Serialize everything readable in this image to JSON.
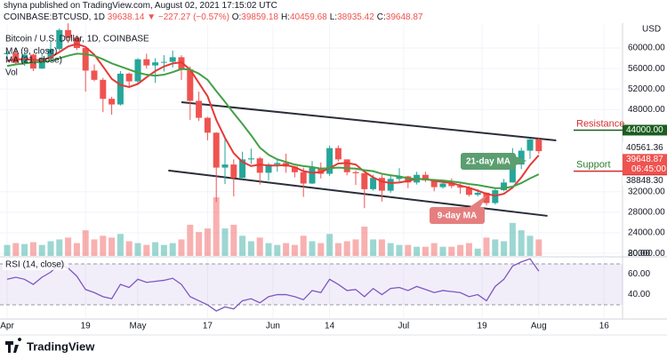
{
  "header": {
    "byline": "shyna published on TradingView.com, August 02, 2021 17:15:02 UTC",
    "symbol": "COINBASE:BTCUSD, 1D",
    "last": 39638.14,
    "change": "▼ −227.27 (−0.57%)",
    "ohlc": [
      {
        "label": "O:",
        "value": 39859.18
      },
      {
        "label": "H:",
        "value": 40459.68
      },
      {
        "label": "L:",
        "value": 38935.42
      },
      {
        "label": "C:",
        "value": 39648.87
      }
    ]
  },
  "footer": {
    "brand": "TradingView"
  },
  "chart_data": {
    "type": "candlestick",
    "title": "Bitcoin / U.S. Dollar, 1D, COINBASE",
    "y_unit": "USD",
    "up_color": "#26a69a",
    "down_color": "#ef5350",
    "grid": true,
    "x": [
      "Apr 1",
      "Apr 3",
      "Apr 5",
      "Apr 7",
      "Apr 9",
      "Apr 11",
      "Apr 13",
      "Apr 15",
      "Apr 17",
      "Apr 19",
      "Apr 21",
      "Apr 23",
      "Apr 25",
      "Apr 27",
      "Apr 29",
      "May 1",
      "May 3",
      "May 5",
      "May 7",
      "May 9",
      "May 11",
      "May 13",
      "May 15",
      "May 17",
      "May 19",
      "May 21",
      "May 23",
      "May 25",
      "May 27",
      "May 29",
      "May 31",
      "Jun 2",
      "Jun 4",
      "Jun 6",
      "Jun 8",
      "Jun 10",
      "Jun 12",
      "Jun 14",
      "Jun 16",
      "Jun 18",
      "Jun 20",
      "Jun 22",
      "Jun 24",
      "Jun 26",
      "Jun 28",
      "Jun 30",
      "Jul 2",
      "Jul 4",
      "Jul 6",
      "Jul 8",
      "Jul 10",
      "Jul 12",
      "Jul 14",
      "Jul 16",
      "Jul 18",
      "Jul 20",
      "Jul 22",
      "Jul 24",
      "Jul 26",
      "Jul 28",
      "Jul 30",
      "Aug 1"
    ],
    "open": [
      58800,
      59000,
      57100,
      58700,
      56000,
      58100,
      59800,
      63500,
      62000,
      60000,
      55600,
      53800,
      50100,
      49000,
      55000,
      53500,
      57800,
      56600,
      57200,
      57300,
      58200,
      55800,
      49700,
      46400,
      43500,
      36700,
      37300,
      34700,
      38300,
      38500,
      35700,
      37300,
      37600,
      36900,
      35800,
      33600,
      36700,
      35500,
      40500,
      38300,
      35800,
      35600,
      32500,
      34700,
      32200,
      34500,
      35000,
      33800,
      35300,
      34200,
      32900,
      33600,
      33100,
      32800,
      31400,
      31800,
      29800,
      32300,
      33800,
      37300,
      40000,
      42200
    ],
    "high": [
      59400,
      60000,
      59200,
      58900,
      59000,
      61300,
      63800,
      64800,
      62500,
      60100,
      56800,
      54200,
      50500,
      55500,
      55200,
      58000,
      58900,
      58000,
      58600,
      59500,
      58600,
      56400,
      51500,
      46600,
      43600,
      42400,
      38300,
      39800,
      40400,
      38800,
      37600,
      38200,
      39400,
      37000,
      36700,
      38000,
      37700,
      41000,
      41000,
      38300,
      36200,
      35600,
      35300,
      35300,
      35200,
      36600,
      35100,
      35900,
      35900,
      34500,
      34300,
      34600,
      33900,
      33100,
      32500,
      31900,
      32800,
      34500,
      40500,
      40600,
      42300,
      42600
    ],
    "low": [
      57900,
      56900,
      56500,
      55500,
      55900,
      57900,
      59500,
      61000,
      59600,
      51500,
      53500,
      47500,
      47000,
      48800,
      52300,
      53000,
      56000,
      53200,
      55400,
      56200,
      53800,
      46000,
      45800,
      42000,
      30000,
      33500,
      31100,
      34400,
      37400,
      33400,
      34200,
      35900,
      35700,
      34800,
      31000,
      33500,
      34600,
      35100,
      37900,
      35200,
      33300,
      28800,
      32200,
      30100,
      31800,
      34000,
      32700,
      33400,
      33900,
      32100,
      32600,
      32700,
      31600,
      31100,
      31100,
      29300,
      29500,
      32100,
      33800,
      36400,
      38400,
      39400
    ],
    "close": [
      59000,
      57100,
      58700,
      56000,
      58100,
      59800,
      63500,
      62000,
      60000,
      55600,
      53800,
      50100,
      49000,
      55000,
      53500,
      57800,
      56600,
      57200,
      57300,
      58200,
      55800,
      49700,
      46400,
      43500,
      36700,
      37300,
      34700,
      38300,
      38500,
      35700,
      37300,
      37600,
      36900,
      35800,
      33600,
      36700,
      35500,
      40500,
      38300,
      35800,
      35600,
      32500,
      34700,
      32200,
      34500,
      35000,
      33800,
      35300,
      34200,
      32900,
      33600,
      33100,
      32800,
      31400,
      31800,
      29800,
      32300,
      33800,
      37300,
      40000,
      42200,
      39900
    ],
    "series": [
      {
        "name": "MA (9, close)",
        "color": "#e53935",
        "values": [
          57500,
          57800,
          57800,
          57700,
          57600,
          58200,
          59200,
          60300,
          60800,
          60200,
          58700,
          56400,
          54000,
          52800,
          52400,
          53000,
          54300,
          55500,
          56400,
          57000,
          57200,
          55800,
          53200,
          50600,
          46000,
          42500,
          39500,
          37800,
          37000,
          37300,
          37100,
          37100,
          37200,
          36800,
          36000,
          35700,
          35800,
          36600,
          37500,
          37600,
          37300,
          35900,
          34800,
          34000,
          33700,
          33800,
          34100,
          34500,
          34500,
          34100,
          33900,
          33700,
          33200,
          32800,
          32200,
          31600,
          31200,
          31600,
          32800,
          34800,
          37200,
          39100
        ]
      },
      {
        "name": "MA (21, close)",
        "color": "#43a047",
        "values": [
          56500,
          56800,
          57000,
          57200,
          57300,
          57500,
          58000,
          58500,
          58900,
          58800,
          58500,
          57800,
          57000,
          56400,
          55800,
          55200,
          54800,
          54600,
          54800,
          55300,
          55900,
          55800,
          55000,
          53800,
          51600,
          49500,
          47300,
          45200,
          43000,
          40600,
          39200,
          38300,
          37800,
          37300,
          37000,
          36800,
          36500,
          36600,
          36700,
          36600,
          36500,
          36200,
          36000,
          35500,
          35200,
          35000,
          34600,
          34500,
          34400,
          34300,
          34200,
          34000,
          33800,
          33500,
          33300,
          33000,
          32700,
          32700,
          33000,
          33700,
          34600,
          35400
        ]
      }
    ],
    "volume": {
      "name": "Vol",
      "values": [
        12000,
        14000,
        13000,
        15000,
        12000,
        16000,
        18000,
        20000,
        14000,
        28000,
        18000,
        22000,
        20000,
        24000,
        16000,
        14000,
        12000,
        15000,
        12000,
        14000,
        18000,
        34000,
        26000,
        30000,
        64000,
        30000,
        34000,
        22000,
        16000,
        20000,
        14000,
        12000,
        14000,
        12000,
        22000,
        16000,
        14000,
        24000,
        14000,
        16000,
        18000,
        32000,
        18000,
        18000,
        14000,
        12000,
        12000,
        10000,
        10000,
        14000,
        10000,
        10000,
        12000,
        14000,
        8000,
        20000,
        18000,
        16000,
        36000,
        28000,
        22000,
        18000
      ]
    },
    "ylim": [
      19500,
      64500
    ],
    "yticks": [
      {
        "value": 60000,
        "label": "60000.00"
      },
      {
        "value": 56000,
        "label": "56000.00"
      },
      {
        "value": 52000,
        "label": "52000.00"
      },
      {
        "value": 48000,
        "label": "48000.00"
      },
      {
        "value": 32000,
        "label": "32000.00"
      },
      {
        "value": 28000,
        "label": "28000.00"
      },
      {
        "value": 24000,
        "label": "24000.00"
      },
      {
        "value": 20000,
        "label": "20000.00"
      }
    ],
    "xticks": [
      {
        "value": "Apr 1",
        "label": "Apr"
      },
      {
        "value": "Apr 19",
        "label": "19"
      },
      {
        "value": "May 1",
        "label": "May"
      },
      {
        "value": "May 17",
        "label": "17"
      },
      {
        "value": "Jun 1",
        "label": "Jun"
      },
      {
        "value": "Jun 14",
        "label": "14"
      },
      {
        "value": "Jul 1",
        "label": "Jul"
      },
      {
        "value": "Jul 19",
        "label": "19"
      },
      {
        "value": "Aug 1",
        "label": "Aug"
      },
      {
        "value": "Aug 16",
        "label": "16"
      }
    ],
    "trendlines": [
      {
        "start": [
          "May 11",
          49450
        ],
        "end": [
          "Aug 5",
          42000
        ],
        "color": "#2a2e39"
      },
      {
        "start": [
          "May 8",
          36130
        ],
        "end": [
          "Aug 3",
          27300
        ],
        "color": "#2a2e39"
      }
    ],
    "levels": [
      {
        "name": "Resistance",
        "value": 44000,
        "value_label": "44000.00",
        "line_color": "#1b5e20",
        "text_color": "#d32f2f"
      },
      {
        "name": "Support",
        "value": 36000,
        "value_label": "36000.00",
        "line_color": "#d32f2f",
        "text_color": "#2e7d32"
      }
    ],
    "markers": [
      {
        "value": 40561.36,
        "label": "40561.36",
        "background": "#ffffff",
        "text_color": "#131722"
      },
      {
        "value": 39648.87,
        "label": "39648.87",
        "sublabel": "06:45:00",
        "background": "#ef5350",
        "text_color": "#ffffff"
      },
      {
        "value": 38848.3,
        "label": "38848.30",
        "background": "#ffffff",
        "text_color": "#131722"
      }
    ],
    "callouts": [
      {
        "text": "21-day MA",
        "color": "#5b9e70"
      },
      {
        "text": "9-day MA",
        "color": "#e57f7f"
      }
    ],
    "rsi": {
      "name": "RSI (14, close)",
      "color": "#7e57c2",
      "band": [
        70,
        30
      ],
      "ylim": [
        17,
        77
      ],
      "yticks": [
        {
          "value": 80,
          "label": "80.00"
        },
        {
          "value": 60,
          "label": "60.00"
        },
        {
          "value": 40,
          "label": "40.00"
        }
      ],
      "values": [
        55,
        57,
        55,
        50,
        57,
        62,
        70,
        66,
        58,
        45,
        42,
        38,
        36,
        50,
        47,
        55,
        52,
        53,
        54,
        56,
        50,
        38,
        34,
        30,
        24,
        28,
        26,
        34,
        36,
        32,
        38,
        40,
        40,
        38,
        35,
        44,
        42,
        55,
        50,
        44,
        45,
        38,
        46,
        40,
        46,
        47,
        44,
        48,
        45,
        42,
        44,
        43,
        42,
        38,
        40,
        34,
        48,
        55,
        68,
        72,
        75,
        63
      ]
    }
  }
}
